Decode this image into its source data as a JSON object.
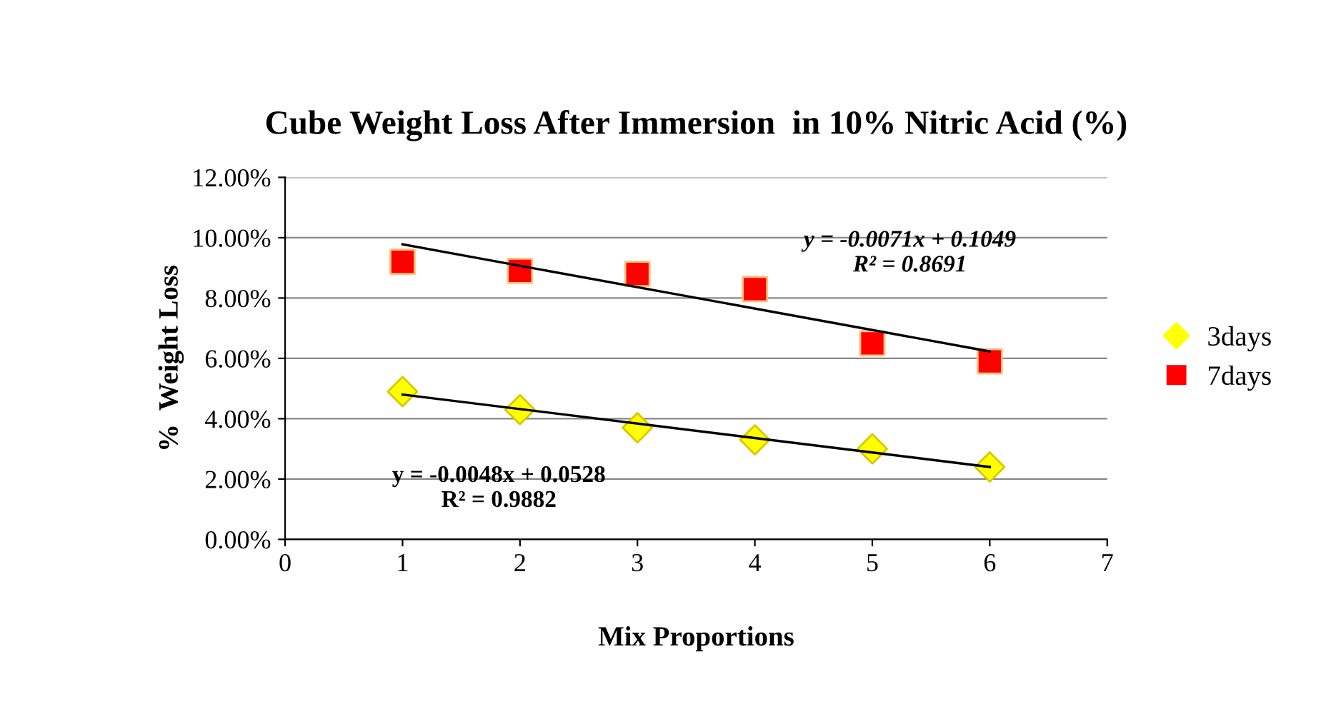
{
  "chart_data": {
    "type": "scatter",
    "title": "Cube Weight Loss After Immersion  in 10% Nitric Acid (%)",
    "xlabel": "Mix Proportions",
    "ylabel": "%  Weight Loss",
    "series": [
      {
        "name": "3days",
        "color": "#ffff00",
        "marker": "diamond",
        "x": [
          1,
          2,
          3,
          4,
          5,
          6
        ],
        "values": [
          0.049,
          0.043,
          0.037,
          0.033,
          0.03,
          0.024
        ]
      },
      {
        "name": "7days",
        "color": "#ff0000",
        "marker": "square",
        "x": [
          1,
          2,
          3,
          4,
          5,
          6
        ],
        "values": [
          0.092,
          0.089,
          0.088,
          0.083,
          0.065,
          0.059
        ]
      },
      {
        "type": "line",
        "color": "#000000",
        "marker": "none",
        "x": [
          1,
          6
        ],
        "values": [
          0.048,
          0.024
        ]
      },
      {
        "type": "line",
        "color": "#000000",
        "marker": "none",
        "x": [
          1,
          6
        ],
        "values": [
          0.0978,
          0.0623
        ]
      }
    ],
    "annotations": [
      "y = -0.0048x + 0.0528\nR² = 0.9882",
      "y = -0.0071x + 0.1049\nR² = 0.8691"
    ],
    "xlim": [
      0,
      7
    ],
    "xticks": [
      0,
      1,
      2,
      3,
      4,
      5,
      6,
      7
    ],
    "ylim": [
      0,
      0.12
    ],
    "yticks": [
      {
        "value": 0,
        "label": "0.00%"
      },
      {
        "value": 0.02,
        "label": "2.00%"
      },
      {
        "value": 0.04,
        "label": "4.00%"
      },
      {
        "value": 0.06,
        "label": "6.00%"
      },
      {
        "value": 0.08,
        "label": "8.00%"
      },
      {
        "value": 0.1,
        "label": "10.00%"
      },
      {
        "value": 0.12,
        "label": "12.00%"
      }
    ],
    "grid": "y",
    "legend": "right"
  }
}
